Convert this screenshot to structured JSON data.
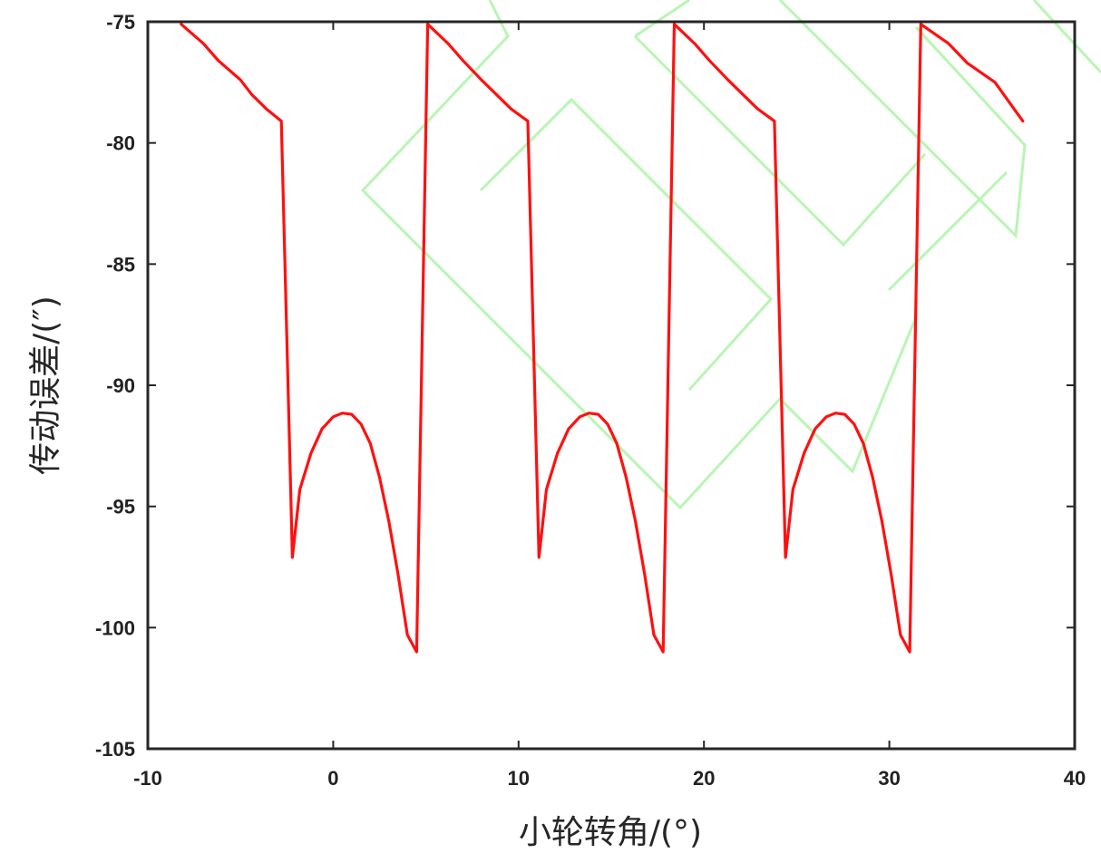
{
  "chart_data": {
    "type": "line",
    "xlabel": "小轮转角/(°)",
    "ylabel": "传动误差/(″)",
    "xlim": [
      -10,
      40
    ],
    "ylim": [
      -105,
      -75
    ],
    "xticks": [
      -10,
      0,
      10,
      20,
      30,
      40
    ],
    "yticks": [
      -75,
      -80,
      -85,
      -90,
      -95,
      -100,
      -105
    ],
    "grid": false,
    "line_color": "#ff1010",
    "series": [
      {
        "x": [
          -8.2,
          -7.0,
          -6.2,
          -5.0,
          -4.4,
          -3.6,
          -2.8,
          -2.2,
          -1.8,
          -1.2,
          -0.6,
          0.0,
          0.5,
          1.0,
          1.5,
          2.0,
          2.5,
          3.0,
          3.5,
          4.0,
          4.5,
          5.1,
          6.2,
          7.0,
          8.0,
          8.8,
          9.6,
          10.5,
          11.1,
          11.5,
          12.1,
          12.7,
          13.3,
          13.8,
          14.3,
          14.8,
          15.3,
          15.8,
          16.3,
          16.8,
          17.3,
          17.8,
          18.4,
          19.5,
          20.3,
          21.3,
          22.1,
          22.9,
          23.8,
          24.4,
          24.8,
          25.4,
          26.0,
          26.6,
          27.1,
          27.6,
          28.1,
          28.6,
          29.1,
          29.6,
          30.1,
          30.6,
          31.1,
          31.7,
          33.2,
          34.2,
          35.7,
          37.2
        ],
        "y": [
          -75.1,
          -75.9,
          -76.6,
          -77.4,
          -78.0,
          -78.6,
          -79.1,
          -97.1,
          -94.3,
          -92.8,
          -91.8,
          -91.3,
          -91.15,
          -91.2,
          -91.6,
          -92.4,
          -93.8,
          -95.6,
          -97.8,
          -100.3,
          -101.0,
          -75.1,
          -75.9,
          -76.6,
          -77.4,
          -78.0,
          -78.6,
          -79.1,
          -97.1,
          -94.3,
          -92.8,
          -91.8,
          -91.3,
          -91.15,
          -91.2,
          -91.6,
          -92.4,
          -93.8,
          -95.6,
          -97.8,
          -100.3,
          -101.0,
          -75.1,
          -75.9,
          -76.6,
          -77.4,
          -78.0,
          -78.6,
          -79.1,
          -97.1,
          -94.3,
          -92.8,
          -91.8,
          -91.3,
          -91.15,
          -91.2,
          -91.6,
          -92.4,
          -93.8,
          -95.6,
          -97.8,
          -100.3,
          -101.0,
          -75.1,
          -75.9,
          -76.7,
          -77.5,
          -79.1
        ]
      }
    ]
  }
}
